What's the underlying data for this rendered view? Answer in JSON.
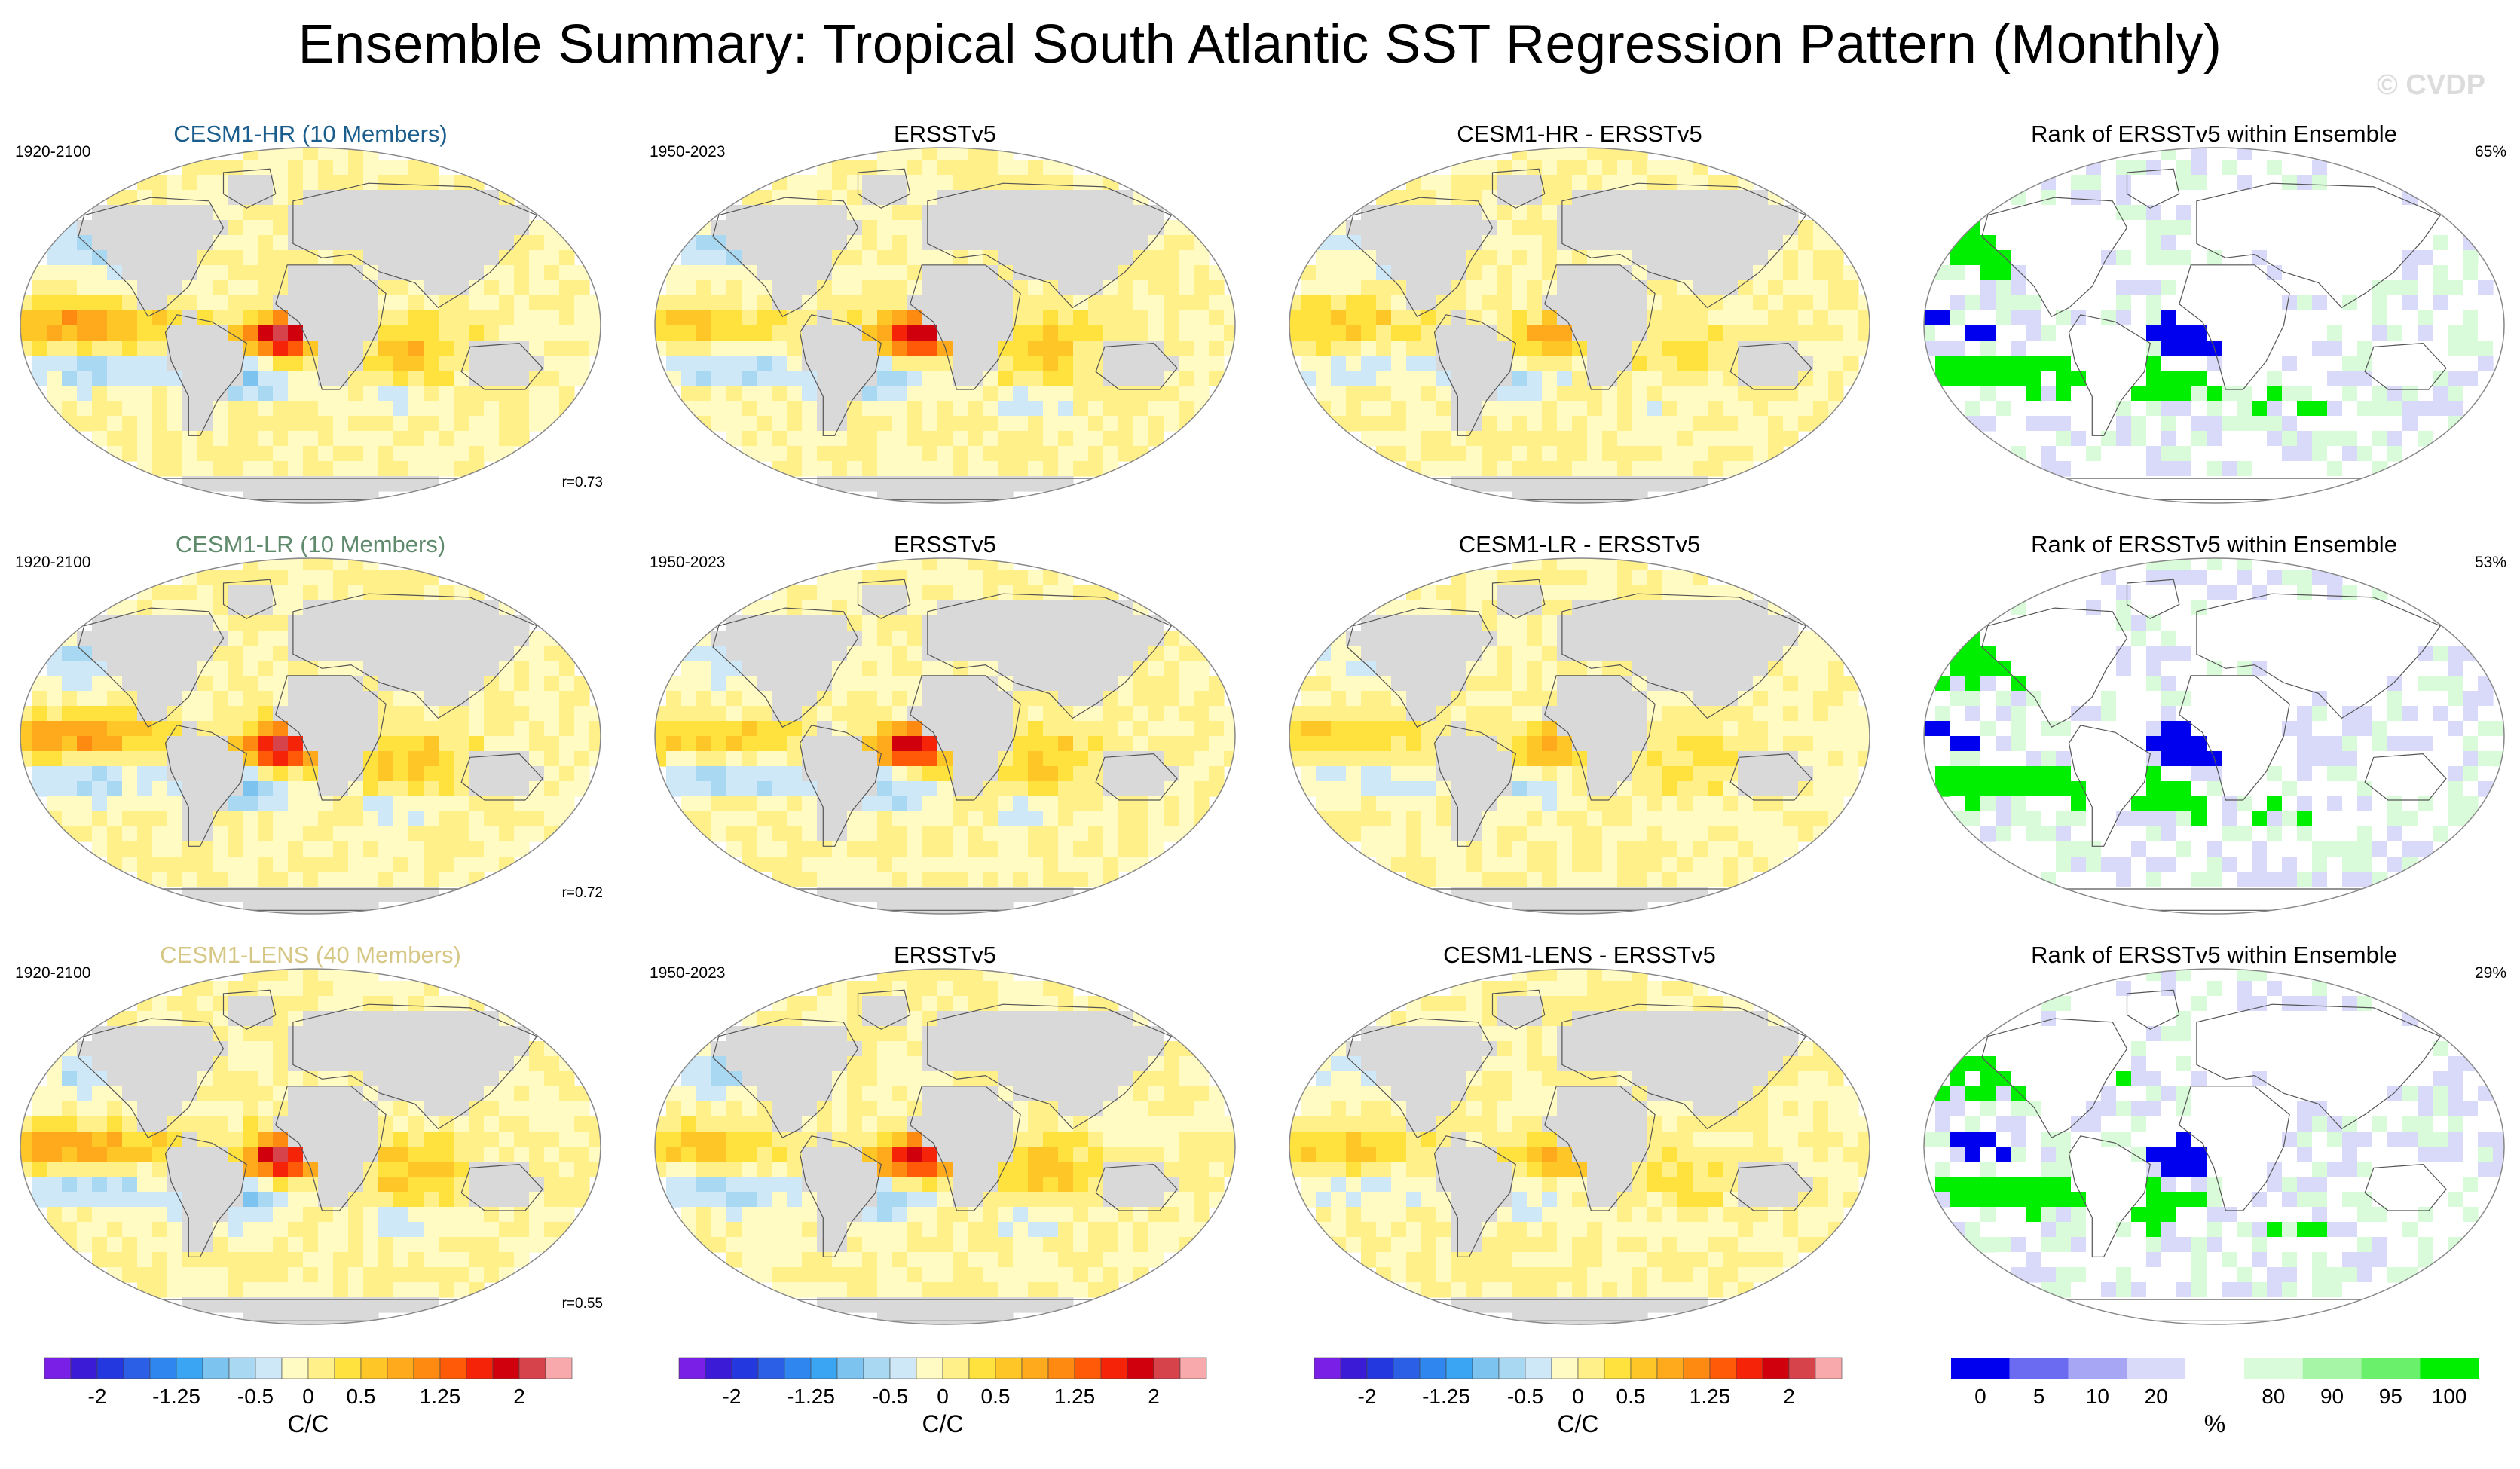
{
  "figure": {
    "title": "Ensemble Summary: Tropical South Atlantic SST Regression Pattern (Monthly)",
    "watermark": "© CVDP"
  },
  "colors": {
    "diverging": [
      "#7a1fe6",
      "#3b1bd6",
      "#2438e0",
      "#2b5fe6",
      "#2f86ef",
      "#3aa5f2",
      "#7dc3f0",
      "#a9d8f3",
      "#cfe8f7",
      "#fffbc2",
      "#fff08a",
      "#ffe23e",
      "#ffc627",
      "#ffaa1c",
      "#ff8a12",
      "#ff5a08",
      "#f52308",
      "#d0000c",
      "#d6434b",
      "#f7a9ab"
    ],
    "rank": [
      "#0000ee",
      "#6b6bf2",
      "#a6a6f4",
      "#d9d9f9",
      "#ffffff",
      "#d9fbd9",
      "#a6f4a6",
      "#6bf06b",
      "#00ee00"
    ],
    "land": "#d9d9d9",
    "title_hr": "#1b5d8c",
    "title_lr": "#5f8a6b",
    "title_lens": "#d6c785"
  },
  "chart_data": [
    {
      "type": "heatmap",
      "row": 1,
      "col": 1,
      "title": "CESM1-HR (10 Members)",
      "period": "1920-2100",
      "corr": "r=0.73",
      "pattern": "model",
      "seed": 11
    },
    {
      "type": "heatmap",
      "row": 1,
      "col": 2,
      "title": "ERSSTv5",
      "period": "1950-2023",
      "pattern": "obs",
      "seed": 21
    },
    {
      "type": "heatmap",
      "row": 1,
      "col": 3,
      "title": "CESM1-HR - ERSSTv5",
      "pattern": "diff",
      "seed": 31
    },
    {
      "type": "heatmap",
      "row": 1,
      "col": 4,
      "title": "Rank of ERSSTv5 within Ensemble",
      "percent": "65%",
      "pattern": "rank",
      "seed": 41
    },
    {
      "type": "heatmap",
      "row": 2,
      "col": 1,
      "title": "CESM1-LR (10 Members)",
      "period": "1920-2100",
      "corr": "r=0.72",
      "pattern": "model",
      "seed": 12
    },
    {
      "type": "heatmap",
      "row": 2,
      "col": 2,
      "title": "ERSSTv5",
      "period": "1950-2023",
      "pattern": "obs",
      "seed": 22
    },
    {
      "type": "heatmap",
      "row": 2,
      "col": 3,
      "title": "CESM1-LR - ERSSTv5",
      "pattern": "diff",
      "seed": 32
    },
    {
      "type": "heatmap",
      "row": 2,
      "col": 4,
      "title": "Rank of ERSSTv5 within Ensemble",
      "percent": "53%",
      "pattern": "rank",
      "seed": 42
    },
    {
      "type": "heatmap",
      "row": 3,
      "col": 1,
      "title": "CESM1-LENS (40 Members)",
      "period": "1920-2100",
      "corr": "r=0.55",
      "pattern": "model",
      "seed": 13
    },
    {
      "type": "heatmap",
      "row": 3,
      "col": 2,
      "title": "ERSSTv5",
      "period": "1950-2023",
      "pattern": "obs",
      "seed": 23
    },
    {
      "type": "heatmap",
      "row": 3,
      "col": 3,
      "title": "CESM1-LENS - ERSSTv5",
      "pattern": "diff",
      "seed": 33
    },
    {
      "type": "heatmap",
      "row": 3,
      "col": 4,
      "title": "Rank of ERSSTv5 within Ensemble",
      "percent": "29%",
      "pattern": "rank",
      "seed": 43
    }
  ],
  "colorbars": [
    {
      "kind": "diverging",
      "unit": "C/C",
      "levels": [
        -2.25,
        -2,
        -1.75,
        -1.5,
        -1.25,
        -1,
        -0.75,
        -0.5,
        -0.25,
        0,
        0.25,
        0.5,
        0.75,
        1,
        1.25,
        1.5,
        1.75,
        2,
        2.25
      ],
      "tick_labels": [
        "-2",
        "-1.25",
        "-0.5",
        "0",
        "0.5",
        "1.25",
        "2"
      ],
      "tick_levels": [
        -2,
        -1.25,
        -0.5,
        0,
        0.5,
        1.25,
        2
      ]
    },
    {
      "kind": "diverging",
      "unit": "C/C",
      "levels": [
        -2.25,
        -2,
        -1.75,
        -1.5,
        -1.25,
        -1,
        -0.75,
        -0.5,
        -0.25,
        0,
        0.25,
        0.5,
        0.75,
        1,
        1.25,
        1.5,
        1.75,
        2,
        2.25
      ],
      "tick_labels": [
        "-2",
        "-1.25",
        "-0.5",
        "0",
        "0.5",
        "1.25",
        "2"
      ],
      "tick_levels": [
        -2,
        -1.25,
        -0.5,
        0,
        0.5,
        1.25,
        2
      ]
    },
    {
      "kind": "diverging",
      "unit": "C/C",
      "levels": [
        -2.25,
        -2,
        -1.75,
        -1.5,
        -1.25,
        -1,
        -0.75,
        -0.5,
        -0.25,
        0,
        0.25,
        0.5,
        0.75,
        1,
        1.25,
        1.5,
        1.75,
        2,
        2.25
      ],
      "tick_labels": [
        "-2",
        "-1.25",
        "-0.5",
        "0",
        "0.5",
        "1.25",
        "2"
      ],
      "tick_levels": [
        -2,
        -1.25,
        -0.5,
        0,
        0.5,
        1.25,
        2
      ]
    },
    {
      "kind": "rank",
      "unit": "%",
      "tick_labels": [
        "0",
        "5",
        "10",
        "20",
        "80",
        "90",
        "95",
        "100"
      ]
    }
  ]
}
